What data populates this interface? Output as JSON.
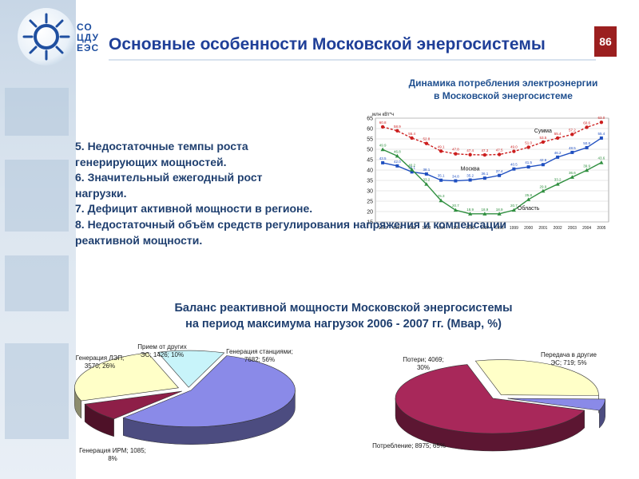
{
  "header": {
    "title": "Основные особенности Московской энергосистемы",
    "page_number": "86",
    "logo_text": [
      "СО",
      "ЦДУ",
      "ЕЭС"
    ]
  },
  "issues": [
    "5. Недостаточные темпы роста генерирующих мощностей.",
    "6. Значительный ежегодный рост нагрузки.",
    "7. Дефицит активной мощности в регионе.",
    "8. Недостаточный объём средств регулирования напряжения и компенсации реактивной мощности."
  ],
  "balance_title": {
    "line1": "Баланс реактивной мощности Московской энергосистемы",
    "line2": "на период максимума нагрузок 2006 - 2007 гг. (Мвар, %)"
  },
  "chart_data": [
    {
      "type": "line",
      "title": "Динамика потребления электроэнергии в Московской энергосистеме",
      "title_lines": [
        "Динамика потребления электроэнергии",
        "в Московской энергосистеме"
      ],
      "ylabel": "млн кВт*ч",
      "ylim": [
        15,
        65
      ],
      "yticks": [
        "15",
        "20",
        "25",
        "30",
        "35",
        "40",
        "45",
        "50",
        "55",
        "60",
        "65"
      ],
      "x": [
        "1990",
        "1991",
        "1992",
        "1993",
        "1994",
        "1995",
        "1996",
        "1997",
        "1998",
        "1999",
        "2000",
        "2001",
        "2002",
        "2003",
        "2004",
        "2005"
      ],
      "series": [
        {
          "name": "Сумма",
          "color": "#cc1f1f",
          "values": [
            60.8,
            58.9,
            55.4,
            52.8,
            49.1,
            47.8,
            47.4,
            47.3,
            47.5,
            49.0,
            51.0,
            53.5,
            55.4,
            57.2,
            60.6,
            63.0
          ],
          "point_labels": [
            "60.8",
            "58.9",
            "55.4",
            "52.8",
            "49.1",
            "47.8",
            "47.4",
            "47.3",
            "47.5",
            "49.0",
            "51.0",
            "53.5",
            "55.4",
            "57.2",
            "60.6",
            "63.0"
          ]
        },
        {
          "name": "Москва",
          "color": "#1f4fc0",
          "values": [
            43.5,
            42.0,
            39.1,
            38.1,
            35.1,
            34.8,
            35.2,
            36.1,
            37.4,
            40.5,
            41.5,
            42.6,
            46.2,
            48.5,
            50.8,
            55.4
          ],
          "point_labels": [
            "43.5",
            "42.0",
            "39.1",
            "38.1",
            "35.1",
            "34.8",
            "35.2",
            "36.1",
            "37.4",
            "40.5",
            "41.5",
            "42.6",
            "46.2",
            "48.5",
            "50.8",
            "55.4"
          ]
        },
        {
          "name": "Область",
          "color": "#2f8f3f",
          "values": [
            49.9,
            46.8,
            40.2,
            33.2,
            25.3,
            20.7,
            18.9,
            18.9,
            18.9,
            20.7,
            25.8,
            29.9,
            33.2,
            36.6,
            39.9,
            43.6
          ],
          "point_labels": [
            "49.9",
            "46.8",
            "40.2",
            "33.2",
            "25.3",
            "20.7",
            "18.9",
            "18.9",
            "18.9",
            "20.7",
            "25.8",
            "29.9",
            "33.2",
            "36.6",
            "39.9",
            "43.6"
          ]
        }
      ],
      "legend": "inline"
    },
    {
      "type": "pie",
      "slices": [
        {
          "label": "Генерация станциями; 7682; 56%",
          "value": 7682,
          "percent": 56,
          "color": "#8a8ae8"
        },
        {
          "label": "Генерация ИРМ; 1085; 8%",
          "value": 1085,
          "percent": 8,
          "color": "#8e1f48"
        },
        {
          "label": "Генерация ЛЭП; 3570; 26%",
          "value": 3570,
          "percent": 26,
          "color": "#ffffc8"
        },
        {
          "label": "Прием от других ЭС; 1426; 10%",
          "value": 1426,
          "percent": 10,
          "color": "#c8f4fa"
        }
      ],
      "label_texts": [
        "Генерация станциями; 7682; 56%",
        "Генерация ИРМ; 1085; 8%",
        "Генерация ЛЭП; 3570; 26%",
        "Прием от других ЭС; 1426; 10%"
      ]
    },
    {
      "type": "pie",
      "slices": [
        {
          "label": "Потребление; 8975; 65%",
          "value": 8975,
          "percent": 65,
          "color": "#a8285a"
        },
        {
          "label": "Потери; 4069; 30%",
          "value": 4069,
          "percent": 30,
          "color": "#ffffc8"
        },
        {
          "label": "Передача в другие ЭС; 719; 5%",
          "value": 719,
          "percent": 5,
          "color": "#8a8ae8"
        }
      ],
      "label_texts": [
        "Потребление; 8975; 65%",
        "Потери; 4069; 30%",
        "Передача в другие ЭС; 719; 5%"
      ]
    }
  ]
}
